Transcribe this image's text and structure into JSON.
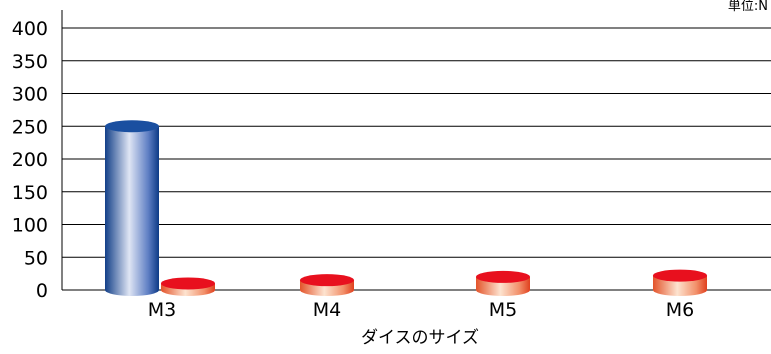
{
  "chart_data": {
    "type": "bar",
    "categories": [
      "M3",
      "M4",
      "M5",
      "M6"
    ],
    "series": [
      {
        "values": [
          250,
          null,
          null,
          null
        ],
        "color": "#1a4fa0"
      },
      {
        "values": [
          10,
          15,
          20,
          22
        ],
        "color": "#e8101e"
      }
    ],
    "ylim": [
      0,
      400
    ],
    "yticks": [
      0,
      50,
      100,
      150,
      200,
      250,
      300,
      350,
      400
    ],
    "xlabel": "ダイスのサイズ",
    "ylabel": "",
    "unit_label": "単位:N",
    "grid": true
  }
}
